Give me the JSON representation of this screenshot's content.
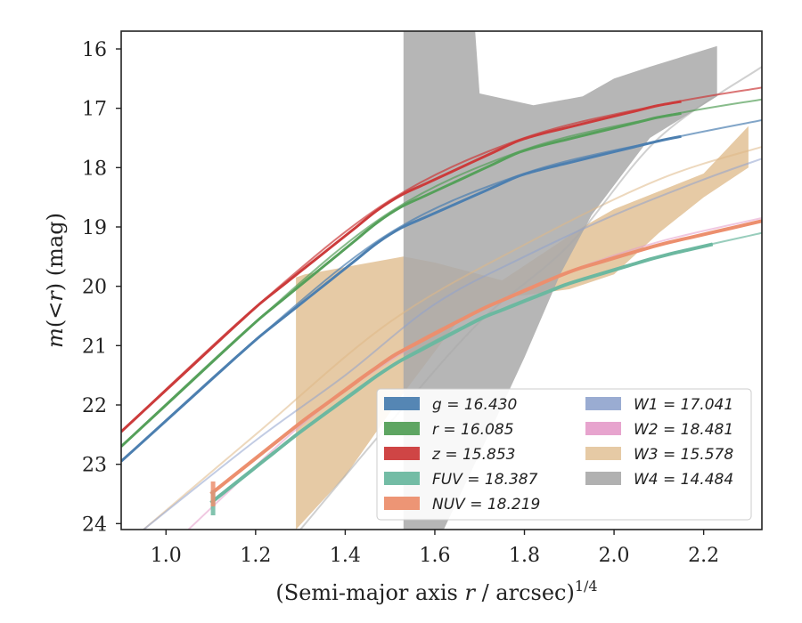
{
  "chart_data": {
    "type": "line",
    "xlabel": "(Semi-major axis r / arcsec)1/4",
    "ylabel": "m(<r) (mag)",
    "xlim": [
      0.9,
      2.33
    ],
    "ylim": [
      24.1,
      15.7
    ],
    "y_inverted": true,
    "x_ticks": [
      "1.0",
      "1.2",
      "1.4",
      "1.6",
      "1.8",
      "2.0",
      "2.2"
    ],
    "y_ticks": [
      "16",
      "17",
      "18",
      "19",
      "20",
      "21",
      "22",
      "23",
      "24"
    ],
    "grid": false,
    "legend_position": "lower-right",
    "legend": {
      "col1": [
        "g = 16.430",
        "r = 16.085",
        "z = 15.853",
        "FUV = 18.387",
        "NUV = 18.219"
      ],
      "col2": [
        "W1 = 17.041",
        "W2 = 18.481",
        "W3 = 15.578",
        "W4 = 14.484"
      ]
    },
    "series": [
      {
        "band": "g",
        "total": 16.43,
        "color": "#4c7fb0",
        "curve": {
          "x": [
            0.9,
            1.2,
            1.5,
            1.8,
            2.1,
            2.33
          ],
          "y": [
            22.95,
            20.9,
            19.1,
            18.1,
            17.55,
            17.2
          ]
        },
        "data_x_range": [
          0.9,
          2.15
        ]
      },
      {
        "band": "r",
        "total": 16.085,
        "color": "#55a05a",
        "curve": {
          "x": [
            0.9,
            1.2,
            1.5,
            1.8,
            2.1,
            2.33
          ],
          "y": [
            22.7,
            20.6,
            18.75,
            17.7,
            17.15,
            16.85
          ]
        },
        "data_x_range": [
          0.9,
          2.15
        ]
      },
      {
        "band": "z",
        "total": 15.853,
        "color": "#cc3b3b",
        "curve": {
          "x": [
            0.9,
            1.2,
            1.5,
            1.8,
            2.1,
            2.33
          ],
          "y": [
            22.45,
            20.35,
            18.55,
            17.5,
            16.95,
            16.65
          ]
        },
        "data_x_range": [
          0.9,
          2.15
        ]
      },
      {
        "band": "FUV",
        "total": 18.387,
        "color": "#6cb8a0",
        "curve": {
          "x": [
            1.1,
            1.3,
            1.5,
            1.7,
            1.9,
            2.1,
            2.33
          ],
          "y": [
            23.65,
            22.45,
            21.35,
            20.55,
            19.95,
            19.5,
            19.1
          ]
        },
        "data_x_range": [
          1.1,
          2.22
        ]
      },
      {
        "band": "NUV",
        "total": 18.219,
        "color": "#ec8f6e",
        "curve": {
          "x": [
            1.1,
            1.3,
            1.5,
            1.7,
            1.9,
            2.1,
            2.33
          ],
          "y": [
            23.5,
            22.3,
            21.2,
            20.4,
            19.75,
            19.3,
            18.9
          ]
        },
        "data_x_range": [
          1.1,
          2.33
        ]
      },
      {
        "band": "W1",
        "total": 17.041,
        "color": "#8fa3cd",
        "curve": {
          "x": [
            0.95,
            1.2,
            1.4,
            1.6,
            1.8,
            2.0,
            2.2,
            2.33
          ],
          "y": [
            24.1,
            22.6,
            21.5,
            20.3,
            19.5,
            18.8,
            18.2,
            17.85
          ]
        },
        "data_x_range": [
          0.95,
          2.33
        ]
      },
      {
        "band": "W2",
        "total": 18.481,
        "color": "#e49ac9",
        "curve": {
          "x": [
            1.05,
            1.3,
            1.5,
            1.7,
            1.9,
            2.1,
            2.33
          ],
          "y": [
            24.1,
            22.35,
            21.25,
            20.4,
            19.75,
            19.25,
            18.85
          ]
        },
        "data_x_range": [
          1.05,
          2.33
        ]
      },
      {
        "band": "W3",
        "total": 15.578,
        "color": "#deb887",
        "curve": {
          "x": [
            0.95,
            1.2,
            1.5,
            1.8,
            2.1,
            2.33
          ],
          "y": [
            24.1,
            22.5,
            20.6,
            19.3,
            18.2,
            17.65
          ]
        },
        "data_x_range": [
          0.95,
          2.33
        ],
        "band_upper": {
          "x": [
            1.29,
            1.31,
            1.53,
            1.6,
            1.75,
            1.93,
            2.0,
            2.2,
            2.3
          ],
          "y": [
            19.85,
            19.8,
            19.5,
            19.6,
            19.9,
            19.0,
            18.7,
            18.1,
            17.3
          ]
        },
        "band_lower": {
          "x": [
            1.29,
            1.4,
            1.53,
            1.65,
            1.75,
            1.9,
            2.0,
            2.1,
            2.2,
            2.3
          ],
          "y": [
            24.1,
            23.2,
            21.8,
            20.6,
            20.2,
            20.05,
            19.8,
            19.1,
            18.5,
            18.0
          ]
        }
      },
      {
        "band": "W4",
        "total": 14.484,
        "color": "#a9a9a9",
        "curve": {
          "x": [
            1.3,
            1.5,
            1.7,
            1.9,
            2.1,
            2.33
          ],
          "y": [
            24.1,
            22.3,
            20.6,
            19.3,
            17.5,
            16.3
          ]
        },
        "data_x_range": [
          1.3,
          2.33
        ],
        "band_upper": {
          "x": [
            1.53,
            1.69,
            1.7,
            1.82,
            1.93,
            2.0,
            2.08,
            2.23
          ],
          "y": [
            15.7,
            15.7,
            16.75,
            16.95,
            16.8,
            16.5,
            16.3,
            15.95
          ]
        },
        "band_lower": {
          "x": [
            1.53,
            1.62,
            1.72,
            1.8,
            1.88,
            1.95,
            2.02,
            2.08,
            2.23
          ],
          "y": [
            24.1,
            24.1,
            22.5,
            21.2,
            19.8,
            18.8,
            18.1,
            17.5,
            16.8
          ]
        }
      }
    ]
  }
}
